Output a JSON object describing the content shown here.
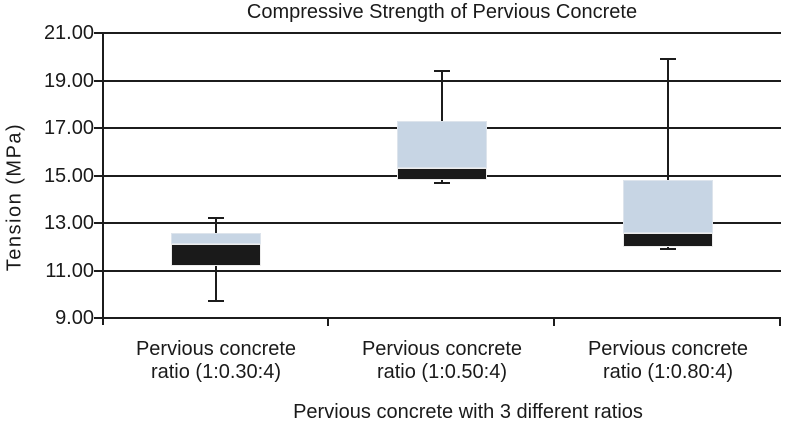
{
  "chart_data": {
    "type": "boxplot",
    "title": "Compressive Strength of Pervious Concrete",
    "xlabel": "Pervious concrete with 3 different ratios",
    "ylabel": "Tension (MPa)",
    "ylim": [
      9,
      21
    ],
    "ytick_step": 2,
    "ytick_decimals": 2,
    "grid": true,
    "legend": false,
    "categories": [
      "Pervious concrete ratio (1:0.30:4)",
      "Pervious concrete ratio (1:0.50:4)",
      "Pervious concrete ratio (1:0.80:4)"
    ],
    "series": [
      {
        "name": "Pervious concrete ratio (1:0.30:4)",
        "min": 9.7,
        "q1": 11.2,
        "median": 12.1,
        "q3": 12.6,
        "max": 13.2
      },
      {
        "name": "Pervious concrete ratio (1:0.50:4)",
        "min": 14.7,
        "q1": 14.8,
        "median": 15.3,
        "q3": 17.3,
        "max": 19.4
      },
      {
        "name": "Pervious concrete ratio (1:0.80:4)",
        "min": 11.9,
        "q1": 12.0,
        "median": 12.6,
        "q3": 14.8,
        "max": 19.9
      }
    ],
    "colors": {
      "upper_box_fill": "#c7d5e4",
      "lower_box_fill": "#1a1a1a",
      "line": "#1c1c1c",
      "background": "#ffffff"
    }
  }
}
